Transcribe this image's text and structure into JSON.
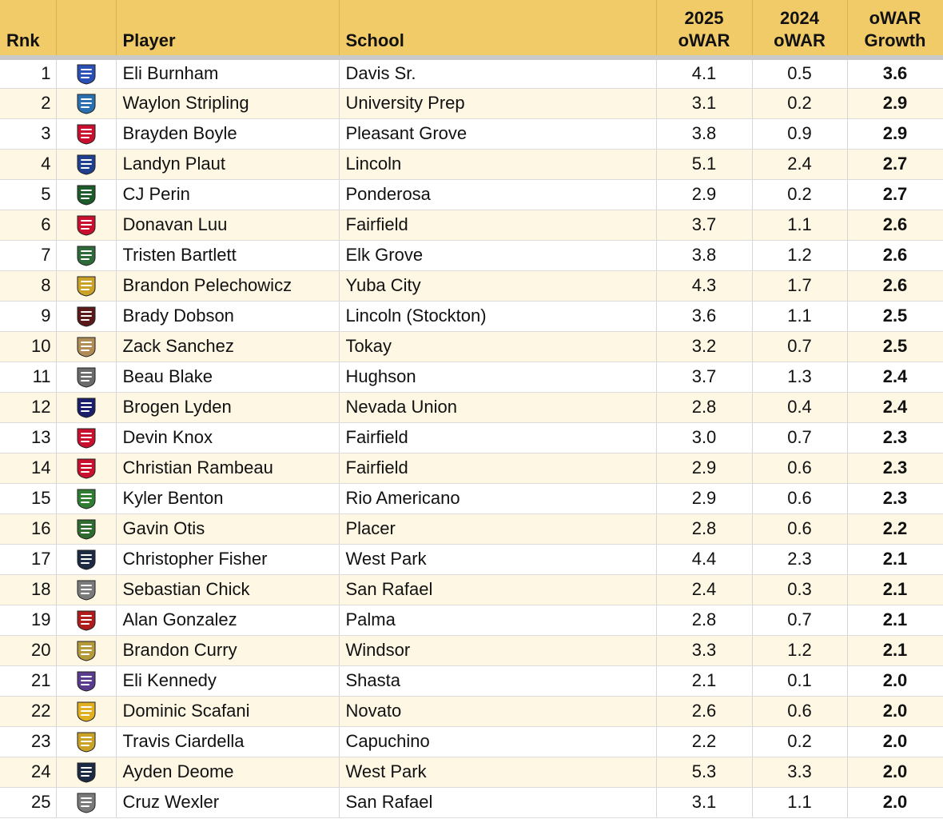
{
  "columns": {
    "rank": "Rnk",
    "player": "Player",
    "school": "School",
    "y2025_line1": "2025",
    "y2025_line2": "oWAR",
    "y2024_line1": "2024",
    "y2024_line2": "oWAR",
    "growth_line1": "oWAR",
    "growth_line2": "Growth"
  },
  "rows": [
    {
      "rank": "1",
      "player": "Eli Burnham",
      "school": "Davis Sr.",
      "owar_2025": "4.1",
      "owar_2024": "0.5",
      "growth": "3.6",
      "logo": "davis-logo-icon",
      "color": "#2a4fb5"
    },
    {
      "rank": "2",
      "player": "Waylon Stripling",
      "school": "University Prep",
      "owar_2025": "3.1",
      "owar_2024": "0.2",
      "growth": "2.9",
      "logo": "university-prep-logo-icon",
      "color": "#2a6fb0"
    },
    {
      "rank": "3",
      "player": "Brayden Boyle",
      "school": "Pleasant Grove",
      "owar_2025": "3.8",
      "owar_2024": "0.9",
      "growth": "2.9",
      "logo": "pleasant-grove-logo-icon",
      "color": "#c8102e"
    },
    {
      "rank": "4",
      "player": "Landyn Plaut",
      "school": "Lincoln",
      "owar_2025": "5.1",
      "owar_2024": "2.4",
      "growth": "2.7",
      "logo": "lincoln-logo-icon",
      "color": "#1f3f8f"
    },
    {
      "rank": "5",
      "player": "CJ Perin",
      "school": "Ponderosa",
      "owar_2025": "2.9",
      "owar_2024": "0.2",
      "growth": "2.7",
      "logo": "ponderosa-paw-icon",
      "color": "#1e5b2a"
    },
    {
      "rank": "6",
      "player": "Donavan Luu",
      "school": "Fairfield",
      "owar_2025": "3.7",
      "owar_2024": "1.1",
      "growth": "2.6",
      "logo": "fairfield-falcon-icon",
      "color": "#c8102e"
    },
    {
      "rank": "7",
      "player": "Tristen Bartlett",
      "school": "Elk Grove",
      "owar_2025": "3.8",
      "owar_2024": "1.2",
      "growth": "2.6",
      "logo": "elk-grove-antler-icon",
      "color": "#2f6b3a"
    },
    {
      "rank": "8",
      "player": "Brandon Pelechowicz",
      "school": "Yuba City",
      "owar_2025": "4.3",
      "owar_2024": "1.7",
      "growth": "2.6",
      "logo": "yuba-city-logo-icon",
      "color": "#c9a227"
    },
    {
      "rank": "9",
      "player": "Brady Dobson",
      "school": "Lincoln (Stockton)",
      "owar_2025": "3.6",
      "owar_2024": "1.1",
      "growth": "2.5",
      "logo": "lincoln-stockton-logo-icon",
      "color": "#5a1a1a"
    },
    {
      "rank": "10",
      "player": "Zack Sanchez",
      "school": "Tokay",
      "owar_2025": "3.2",
      "owar_2024": "0.7",
      "growth": "2.5",
      "logo": "tokay-tiger-icon",
      "color": "#b08d57"
    },
    {
      "rank": "11",
      "player": "Beau Blake",
      "school": "Hughson",
      "owar_2025": "3.7",
      "owar_2024": "1.3",
      "growth": "2.4",
      "logo": "hughson-husky-icon",
      "color": "#6b6b6b"
    },
    {
      "rank": "12",
      "player": "Brogen Lyden",
      "school": "Nevada Union",
      "owar_2025": "2.8",
      "owar_2024": "0.4",
      "growth": "2.4",
      "logo": "nevada-union-logo-icon",
      "color": "#1b1f6b"
    },
    {
      "rank": "13",
      "player": "Devin Knox",
      "school": "Fairfield",
      "owar_2025": "3.0",
      "owar_2024": "0.7",
      "growth": "2.3",
      "logo": "fairfield-falcon-icon",
      "color": "#c8102e"
    },
    {
      "rank": "14",
      "player": "Christian Rambeau",
      "school": "Fairfield",
      "owar_2025": "2.9",
      "owar_2024": "0.6",
      "growth": "2.3",
      "logo": "fairfield-falcon-icon",
      "color": "#c8102e"
    },
    {
      "rank": "15",
      "player": "Kyler Benton",
      "school": "Rio Americano",
      "owar_2025": "2.9",
      "owar_2024": "0.6",
      "growth": "2.3",
      "logo": "rio-americano-raider-icon",
      "color": "#2e7d32"
    },
    {
      "rank": "16",
      "player": "Gavin Otis",
      "school": "Placer",
      "owar_2025": "2.8",
      "owar_2024": "0.6",
      "growth": "2.2",
      "logo": "placer-logo-icon",
      "color": "#2e6b2e"
    },
    {
      "rank": "17",
      "player": "Christopher Fisher",
      "school": "West Park",
      "owar_2025": "4.4",
      "owar_2024": "2.3",
      "growth": "2.1",
      "logo": "west-park-panther-icon",
      "color": "#1c2a44"
    },
    {
      "rank": "18",
      "player": "Sebastian Chick",
      "school": "San Rafael",
      "owar_2025": "2.4",
      "owar_2024": "0.3",
      "growth": "2.1",
      "logo": "san-rafael-bulldog-icon",
      "color": "#7a7a7a"
    },
    {
      "rank": "19",
      "player": "Alan Gonzalez",
      "school": "Palma",
      "owar_2025": "2.8",
      "owar_2024": "0.7",
      "growth": "2.1",
      "logo": "palma-logo-icon",
      "color": "#b01c1c"
    },
    {
      "rank": "20",
      "player": "Brandon Curry",
      "school": "Windsor",
      "owar_2025": "3.3",
      "owar_2024": "1.2",
      "growth": "2.1",
      "logo": "windsor-logo-icon",
      "color": "#b59a3a"
    },
    {
      "rank": "21",
      "player": "Eli Kennedy",
      "school": "Shasta",
      "owar_2025": "2.1",
      "owar_2024": "0.1",
      "growth": "2.0",
      "logo": "shasta-wolf-icon",
      "color": "#5b3b8c"
    },
    {
      "rank": "22",
      "player": "Dominic Scafani",
      "school": "Novato",
      "owar_2025": "2.6",
      "owar_2024": "0.6",
      "growth": "2.0",
      "logo": "novato-hornet-icon",
      "color": "#e0b020"
    },
    {
      "rank": "23",
      "player": "Travis Ciardella",
      "school": "Capuchino",
      "owar_2025": "2.2",
      "owar_2024": "0.2",
      "growth": "2.0",
      "logo": "capuchino-mustang-icon",
      "color": "#c9a227"
    },
    {
      "rank": "24",
      "player": "Ayden Deome",
      "school": "West Park",
      "owar_2025": "5.3",
      "owar_2024": "3.3",
      "growth": "2.0",
      "logo": "west-park-panther-icon",
      "color": "#1c2a44"
    },
    {
      "rank": "25",
      "player": "Cruz Wexler",
      "school": "San Rafael",
      "owar_2025": "3.1",
      "owar_2024": "1.1",
      "growth": "2.0",
      "logo": "san-rafael-bulldog-icon",
      "color": "#7a7a7a"
    }
  ]
}
